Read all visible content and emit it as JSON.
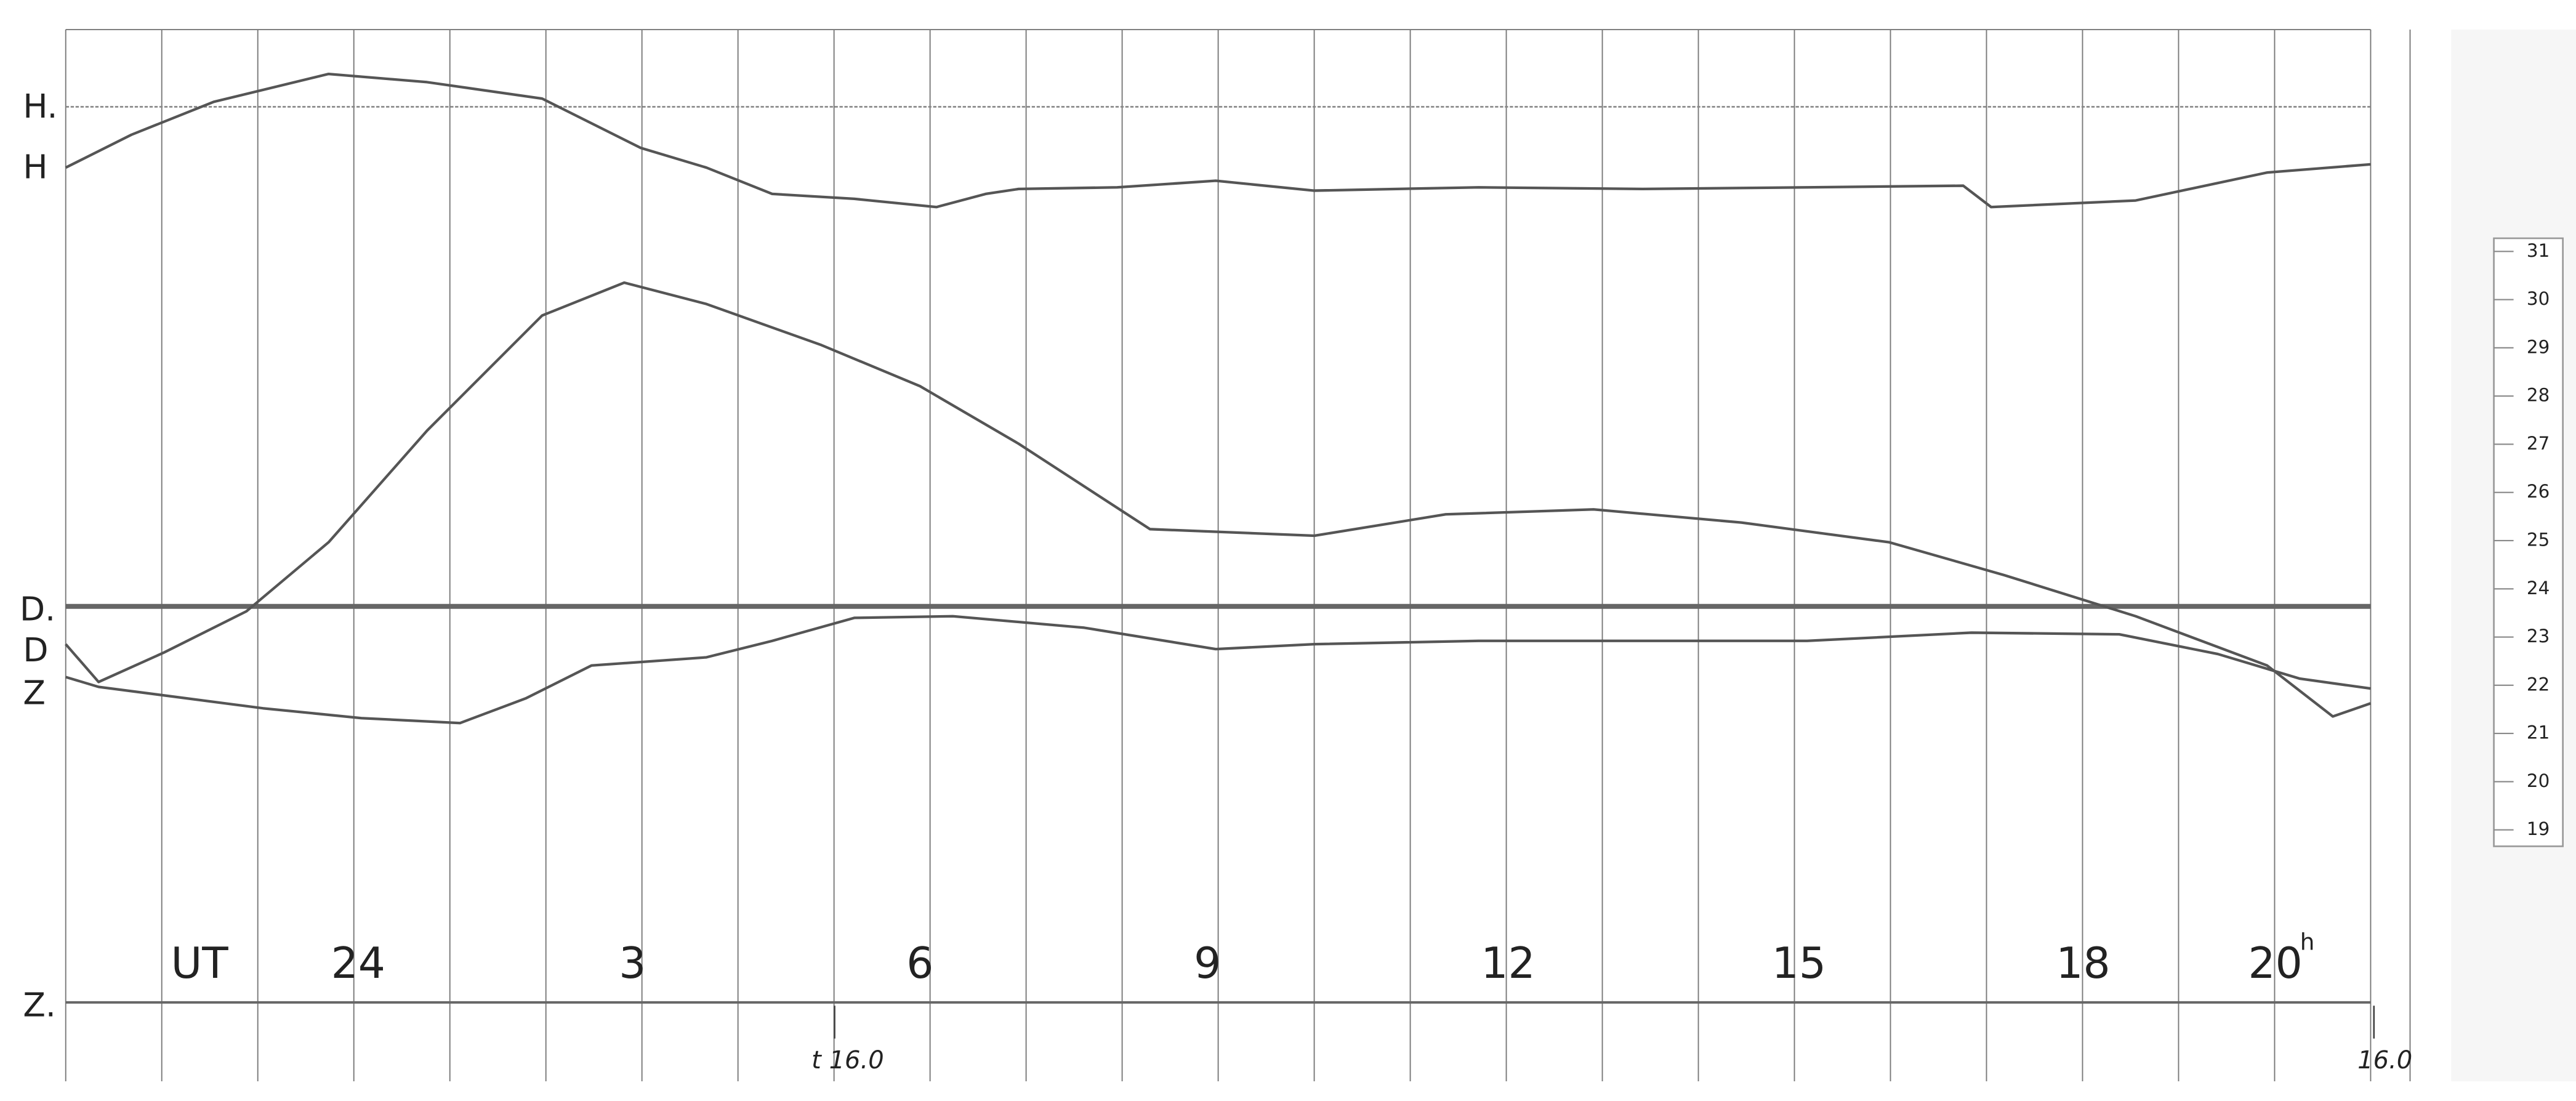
{
  "labels": {
    "h_base": "H.",
    "h": "H",
    "d_base": "D.",
    "d": "D",
    "z": "Z",
    "z_base": "Z."
  },
  "time_axis": {
    "unit": "UT",
    "hours": [
      "24",
      "3",
      "6",
      "9",
      "12",
      "15",
      "18",
      "20"
    ],
    "hour_suffix": "h"
  },
  "marks": {
    "start": "t 16.0",
    "end": "16.0"
  },
  "scale": [
    "31",
    "30",
    "29",
    "28",
    "27",
    "26",
    "25",
    "24",
    "23",
    "22",
    "21",
    "20",
    "19"
  ]
}
